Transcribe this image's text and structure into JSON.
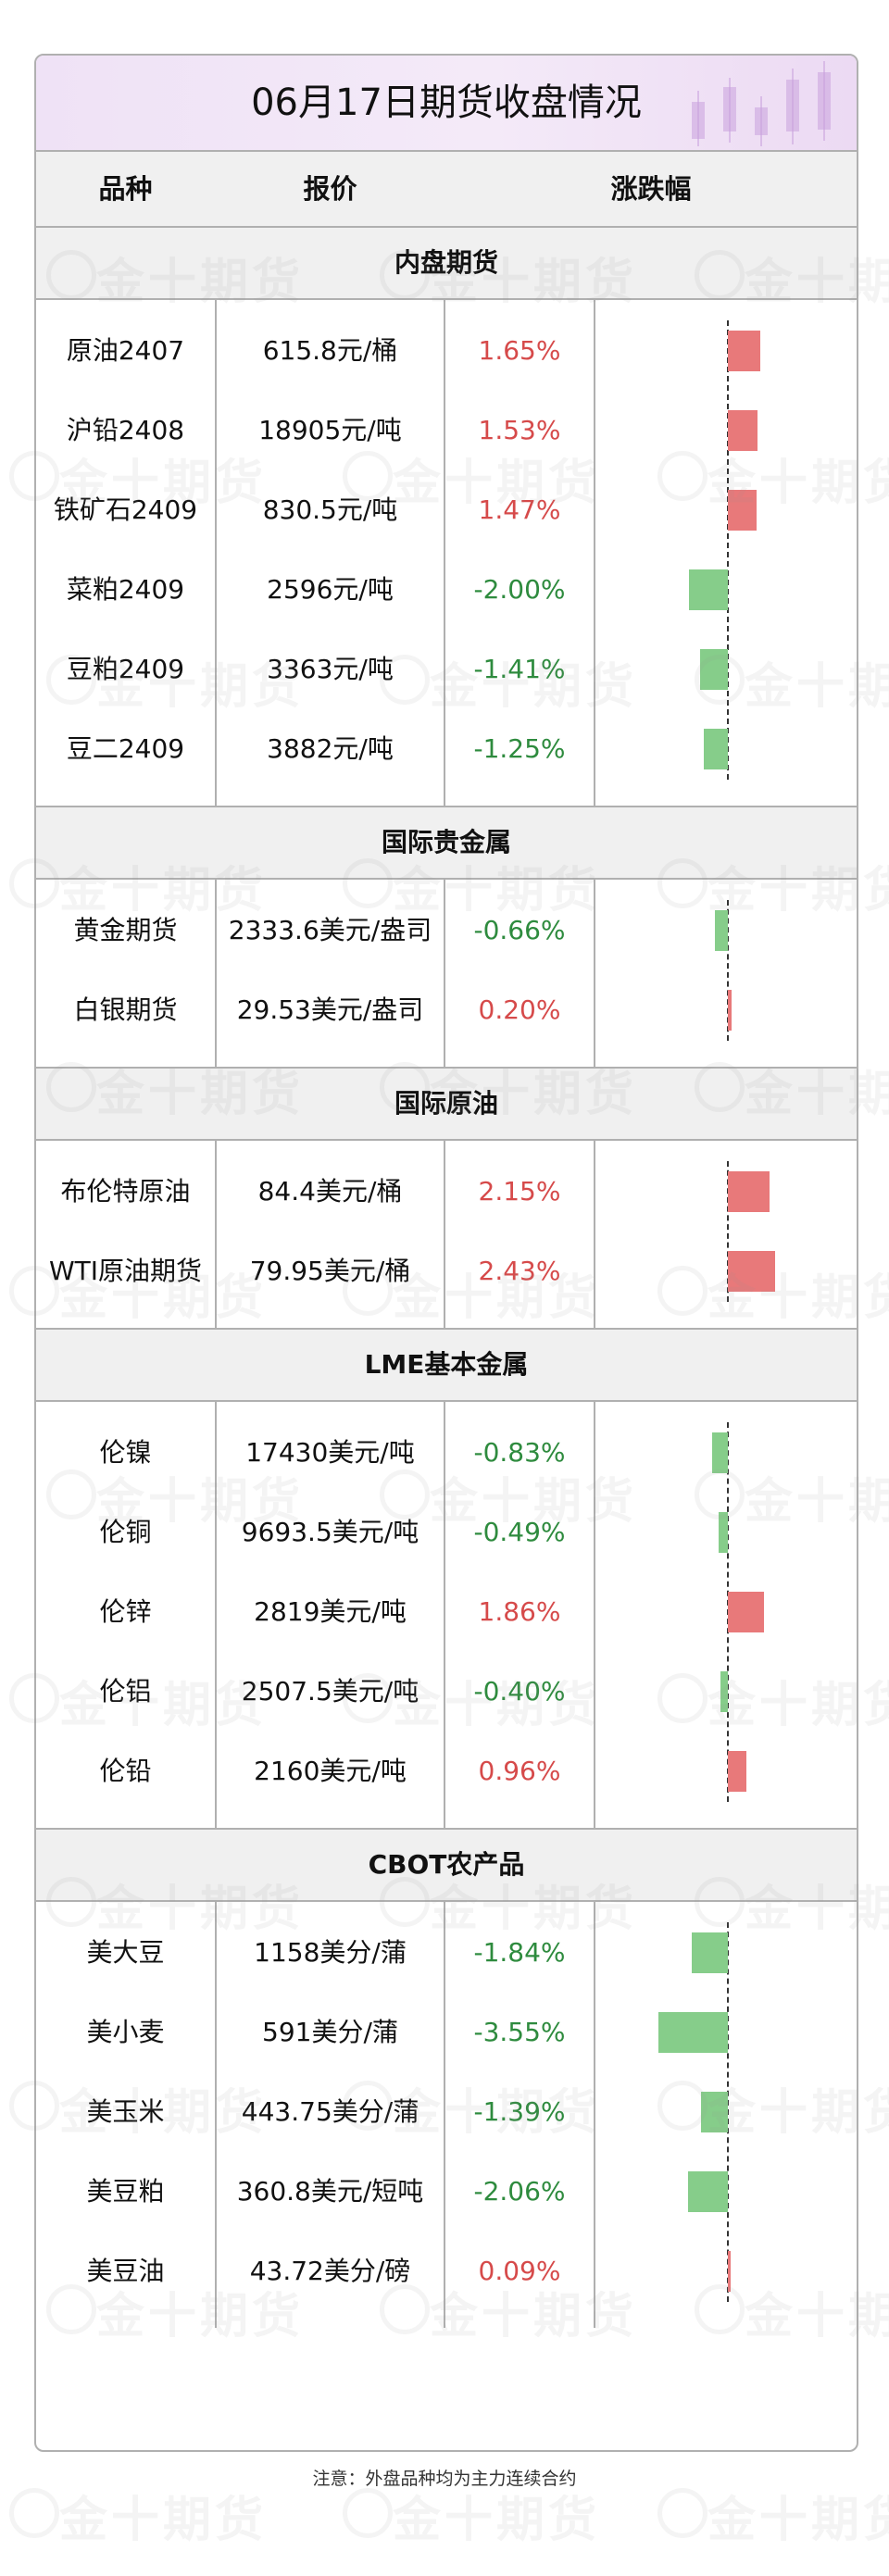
{
  "title": "06月17日期货收盘情况",
  "watermark": "金十期货",
  "headers": {
    "variety": "品种",
    "price": "报价",
    "change": "涨跌幅"
  },
  "colors": {
    "up": "#d64a4a",
    "down": "#2e8b3e",
    "bar_up": "#e8797a",
    "bar_down": "#86cd8a"
  },
  "sections": [
    {
      "title": "内盘期货",
      "rows": [
        {
          "name": "原油2407",
          "price": "615.8元/桶",
          "change": "1.65%",
          "value": 1.65
        },
        {
          "name": "沪铅2408",
          "price": "18905元/吨",
          "change": "1.53%",
          "value": 1.53
        },
        {
          "name": "铁矿石2409",
          "price": "830.5元/吨",
          "change": "1.47%",
          "value": 1.47
        },
        {
          "name": "菜粕2409",
          "price": "2596元/吨",
          "change": "-2.00%",
          "value": -2.0
        },
        {
          "name": "豆粕2409",
          "price": "3363元/吨",
          "change": "-1.41%",
          "value": -1.41
        },
        {
          "name": "豆二2409",
          "price": "3882元/吨",
          "change": "-1.25%",
          "value": -1.25
        }
      ]
    },
    {
      "title": "国际贵金属",
      "rows": [
        {
          "name": "黄金期货",
          "price": "2333.6美元/盎司",
          "change": "-0.66%",
          "value": -0.66
        },
        {
          "name": "白银期货",
          "price": "29.53美元/盎司",
          "change": "0.20%",
          "value": 0.2
        }
      ]
    },
    {
      "title": "国际原油",
      "rows": [
        {
          "name": "布伦特原油",
          "price": "84.4美元/桶",
          "change": "2.15%",
          "value": 2.15
        },
        {
          "name": "WTI原油期货",
          "price": "79.95美元/桶",
          "change": "2.43%",
          "value": 2.43
        }
      ]
    },
    {
      "title": "LME基本金属",
      "rows": [
        {
          "name": "伦镍",
          "price": "17430美元/吨",
          "change": "-0.83%",
          "value": -0.83
        },
        {
          "name": "伦铜",
          "price": "9693.5美元/吨",
          "change": "-0.49%",
          "value": -0.49
        },
        {
          "name": "伦锌",
          "price": "2819美元/吨",
          "change": "1.86%",
          "value": 1.86
        },
        {
          "name": "伦铝",
          "price": "2507.5美元/吨",
          "change": "-0.40%",
          "value": -0.4
        },
        {
          "name": "伦铅",
          "price": "2160美元/吨",
          "change": "0.96%",
          "value": 0.96
        }
      ]
    },
    {
      "title": "CBOT农产品",
      "rows": [
        {
          "name": "美大豆",
          "price": "1158美分/蒲",
          "change": "-1.84%",
          "value": -1.84
        },
        {
          "name": "美小麦",
          "price": "591美分/蒲",
          "change": "-3.55%",
          "value": -3.55
        },
        {
          "name": "美玉米",
          "price": "443.75美分/蒲",
          "change": "-1.39%",
          "value": -1.39
        },
        {
          "name": "美豆粕",
          "price": "360.8美元/短吨",
          "change": "-2.06%",
          "value": -2.06
        },
        {
          "name": "美豆油",
          "price": "43.72美分/磅",
          "change": "0.09%",
          "value": 0.09
        }
      ]
    }
  ],
  "footnote": "注意：外盘品种均为主力连续合约"
}
